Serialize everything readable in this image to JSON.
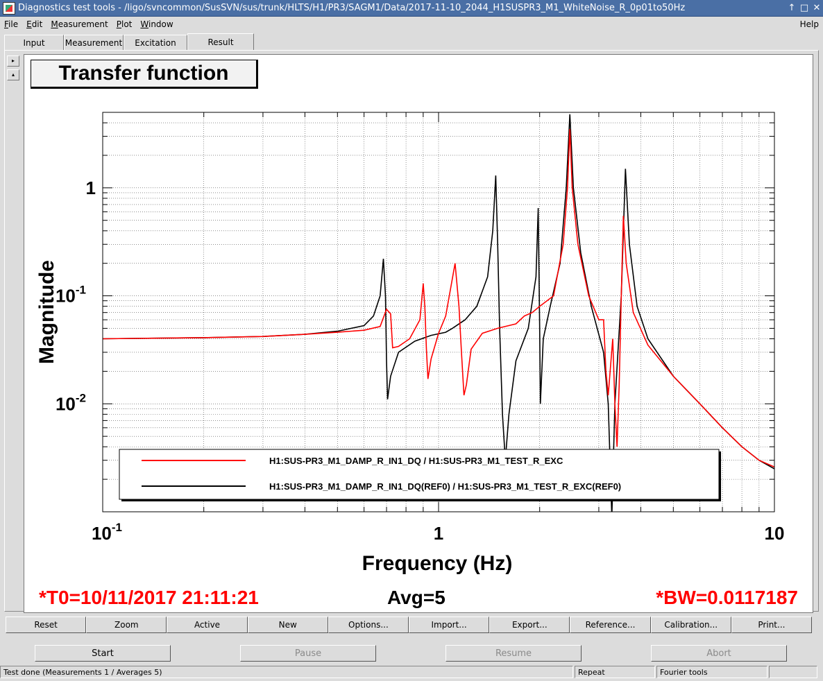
{
  "window": {
    "title": "Diagnostics test tools - /ligo/svncommon/SusSVN/sus/trunk/HLTS/H1/PR3/SAGM1/Data/2017-11-10_2044_H1SUSPR3_M1_WhiteNoise_R_0p01to50Hz",
    "buttons": [
      "↑",
      "□",
      "✕"
    ]
  },
  "menubar": {
    "items": [
      {
        "label": "File",
        "ul": "F",
        "rest": "ile"
      },
      {
        "label": "Edit",
        "ul": "E",
        "rest": "dit"
      },
      {
        "label": "Measurement",
        "ul": "M",
        "rest": "easurement"
      },
      {
        "label": "Plot",
        "ul": "P",
        "rest": "lot"
      },
      {
        "label": "Window",
        "ul": "W",
        "rest": "indow"
      }
    ],
    "help": "Help"
  },
  "tabs": [
    {
      "label": "Input",
      "active": false
    },
    {
      "label": "Measurement",
      "active": false
    },
    {
      "label": "Excitation",
      "active": false
    },
    {
      "label": "Result",
      "active": true
    }
  ],
  "side_buttons": [
    "▸",
    "▴"
  ],
  "plot": {
    "title": "Transfer function",
    "chart_data": {
      "type": "line",
      "xlabel": "Frequency (Hz)",
      "ylabel": "Magnitude",
      "xscale": "log",
      "yscale": "log",
      "xlim": [
        0.1,
        10
      ],
      "ylim": [
        0.001,
        5
      ],
      "x_ticks": [
        {
          "value": 0.1,
          "base": "10",
          "exp": "-1"
        },
        {
          "value": 1,
          "base": "1",
          "exp": ""
        },
        {
          "value": 10,
          "base": "10",
          "exp": ""
        }
      ],
      "y_ticks": [
        {
          "value": 0.01,
          "base": "10",
          "exp": "-2"
        },
        {
          "value": 0.1,
          "base": "10",
          "exp": "-1"
        },
        {
          "value": 1,
          "base": "1",
          "exp": ""
        }
      ],
      "grid": true,
      "legend_position": "bottom",
      "series": [
        {
          "name": "H1:SUS-PR3_M1_DAMP_R_IN1_DQ / H1:SUS-PR3_M1_TEST_R_EXC",
          "color": "#ff0000",
          "points": [
            [
              0.1,
              0.04
            ],
            [
              0.2,
              0.041
            ],
            [
              0.3,
              0.042
            ],
            [
              0.4,
              0.044
            ],
            [
              0.5,
              0.046
            ],
            [
              0.6,
              0.048
            ],
            [
              0.67,
              0.052
            ],
            [
              0.7,
              0.075
            ],
            [
              0.72,
              0.068
            ],
            [
              0.73,
              0.033
            ],
            [
              0.76,
              0.034
            ],
            [
              0.82,
              0.04
            ],
            [
              0.88,
              0.06
            ],
            [
              0.9,
              0.13
            ],
            [
              0.91,
              0.08
            ],
            [
              0.92,
              0.032
            ],
            [
              0.93,
              0.017
            ],
            [
              0.95,
              0.026
            ],
            [
              1.0,
              0.045
            ],
            [
              1.05,
              0.065
            ],
            [
              1.12,
              0.2
            ],
            [
              1.15,
              0.08
            ],
            [
              1.17,
              0.03
            ],
            [
              1.19,
              0.012
            ],
            [
              1.21,
              0.015
            ],
            [
              1.25,
              0.032
            ],
            [
              1.35,
              0.045
            ],
            [
              1.5,
              0.05
            ],
            [
              1.7,
              0.055
            ],
            [
              1.8,
              0.065
            ],
            [
              1.9,
              0.07
            ],
            [
              2.0,
              0.08
            ],
            [
              2.2,
              0.1
            ],
            [
              2.35,
              0.3
            ],
            [
              2.42,
              1.0
            ],
            [
              2.46,
              3.5
            ],
            [
              2.5,
              1.0
            ],
            [
              2.6,
              0.3
            ],
            [
              2.8,
              0.1
            ],
            [
              3.0,
              0.06
            ],
            [
              3.1,
              0.06
            ],
            [
              3.15,
              0.02
            ],
            [
              3.2,
              0.012
            ],
            [
              3.3,
              0.04
            ],
            [
              3.35,
              0.01
            ],
            [
              3.4,
              0.004
            ],
            [
              3.45,
              0.015
            ],
            [
              3.5,
              0.1
            ],
            [
              3.55,
              0.55
            ],
            [
              3.62,
              0.2
            ],
            [
              3.8,
              0.07
            ],
            [
              4.2,
              0.035
            ],
            [
              5.0,
              0.018
            ],
            [
              6.0,
              0.01
            ],
            [
              7.0,
              0.006
            ],
            [
              8.0,
              0.004
            ],
            [
              9.0,
              0.003
            ],
            [
              10.0,
              0.0026
            ]
          ]
        },
        {
          "name": "H1:SUS-PR3_M1_DAMP_R_IN1_DQ(REF0) / H1:SUS-PR3_M1_TEST_R_EXC(REF0)",
          "color": "#000000",
          "points": [
            [
              0.1,
              0.04
            ],
            [
              0.2,
              0.041
            ],
            [
              0.3,
              0.042
            ],
            [
              0.4,
              0.044
            ],
            [
              0.5,
              0.047
            ],
            [
              0.6,
              0.053
            ],
            [
              0.64,
              0.065
            ],
            [
              0.67,
              0.1
            ],
            [
              0.685,
              0.22
            ],
            [
              0.695,
              0.1
            ],
            [
              0.7,
              0.025
            ],
            [
              0.705,
              0.011
            ],
            [
              0.72,
              0.018
            ],
            [
              0.76,
              0.03
            ],
            [
              0.85,
              0.038
            ],
            [
              0.95,
              0.043
            ],
            [
              1.05,
              0.046
            ],
            [
              1.1,
              0.05
            ],
            [
              1.2,
              0.06
            ],
            [
              1.3,
              0.08
            ],
            [
              1.4,
              0.15
            ],
            [
              1.45,
              0.4
            ],
            [
              1.48,
              1.3
            ],
            [
              1.5,
              0.3
            ],
            [
              1.52,
              0.05
            ],
            [
              1.55,
              0.008
            ],
            [
              1.58,
              0.003
            ],
            [
              1.62,
              0.008
            ],
            [
              1.7,
              0.025
            ],
            [
              1.85,
              0.05
            ],
            [
              1.95,
              0.15
            ],
            [
              1.98,
              0.65
            ],
            [
              2.0,
              0.05
            ],
            [
              2.01,
              0.01
            ],
            [
              2.05,
              0.04
            ],
            [
              2.15,
              0.08
            ],
            [
              2.3,
              0.2
            ],
            [
              2.4,
              1.0
            ],
            [
              2.46,
              4.8
            ],
            [
              2.52,
              1.0
            ],
            [
              2.65,
              0.25
            ],
            [
              2.85,
              0.08
            ],
            [
              3.1,
              0.03
            ],
            [
              3.2,
              0.01
            ],
            [
              3.28,
              0.0009
            ],
            [
              3.35,
              0.01
            ],
            [
              3.5,
              0.1
            ],
            [
              3.6,
              1.5
            ],
            [
              3.7,
              0.3
            ],
            [
              3.9,
              0.08
            ],
            [
              4.2,
              0.04
            ],
            [
              5.0,
              0.018
            ],
            [
              6.0,
              0.01
            ],
            [
              7.0,
              0.006
            ],
            [
              8.0,
              0.004
            ],
            [
              9.0,
              0.003
            ],
            [
              10.0,
              0.0025
            ]
          ]
        }
      ]
    }
  },
  "footer": {
    "t0": "*T0=10/11/2017 21:11:21",
    "avg": "Avg=5",
    "bw": "*BW=0.0117187"
  },
  "toolbar": [
    "Reset",
    "Zoom",
    "Active",
    "New",
    "Options...",
    "Import...",
    "Export...",
    "Reference...",
    "Calibration...",
    "Print..."
  ],
  "run_buttons": {
    "start": "Start",
    "pause": "Pause",
    "resume": "Resume",
    "abort": "Abort"
  },
  "statusbar": {
    "message": "Test done (Measurements 1 / Averages 5)",
    "cell1": "",
    "repeat": "Repeat",
    "fourier": "Fourier tools"
  }
}
